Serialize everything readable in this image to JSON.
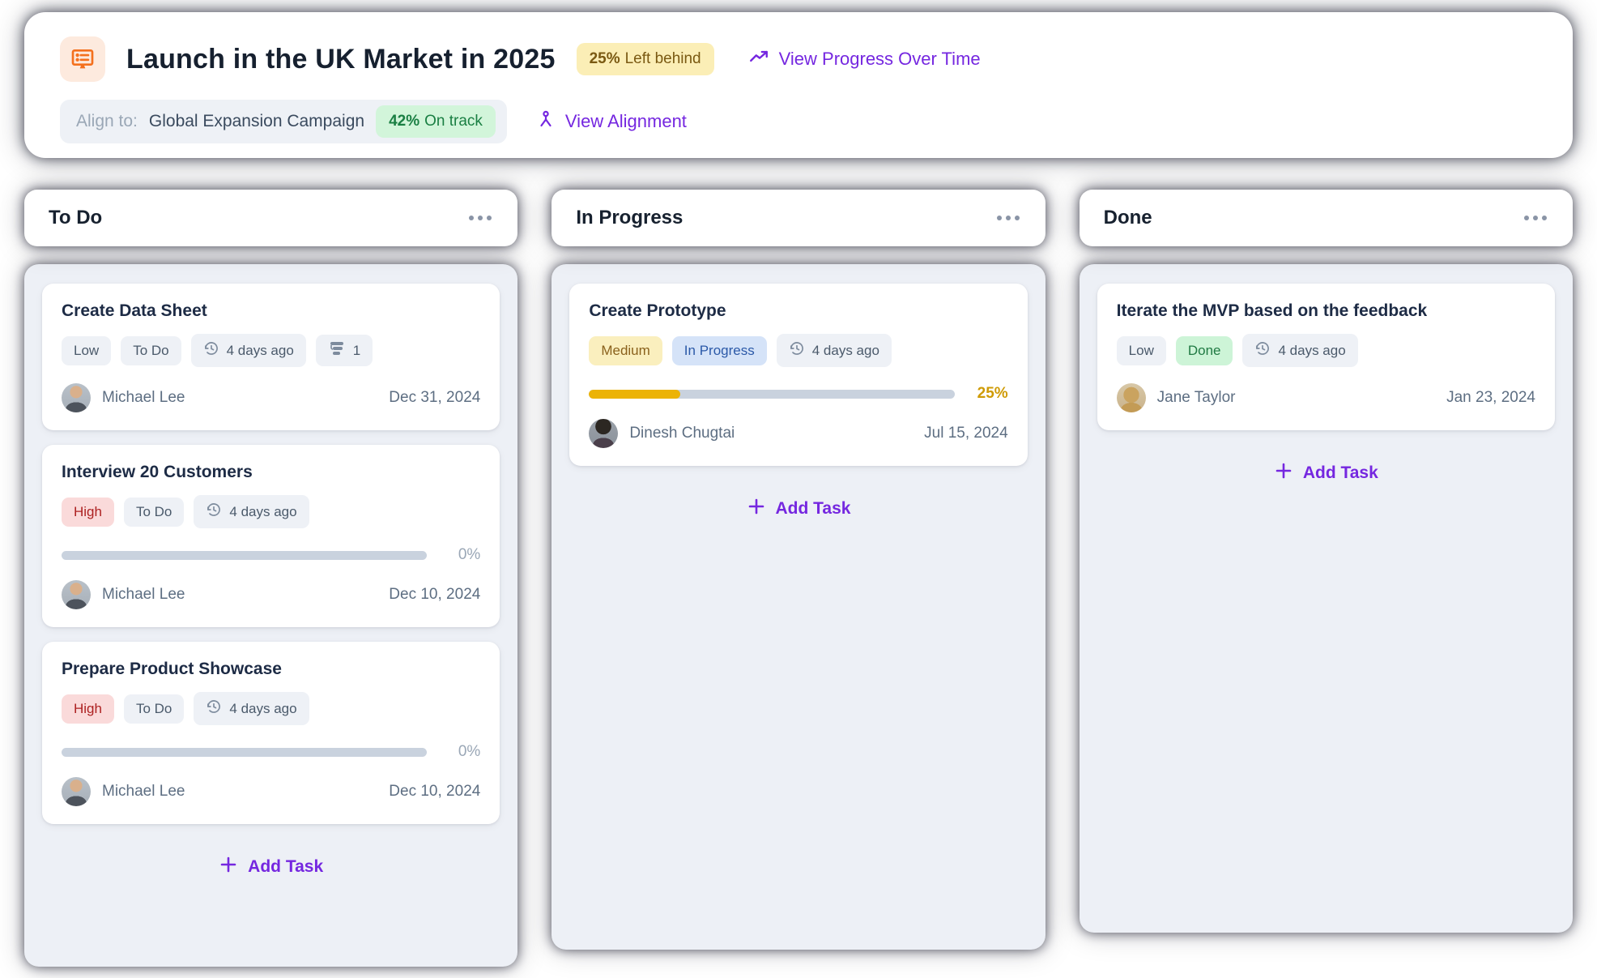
{
  "header": {
    "icon": "board-list-icon",
    "title": "Launch in the UK Market in 2025",
    "progress_badge": {
      "percent": "25%",
      "label": "Left behind"
    },
    "progress_link_label": "View Progress Over Time",
    "align_label": "Align to:",
    "align_target": "Global Expansion Campaign",
    "align_badge": {
      "percent": "42%",
      "label": "On track"
    },
    "alignment_link_label": "View Alignment"
  },
  "columns": [
    {
      "title": "To Do",
      "add_task_label": "Add Task",
      "cards": [
        {
          "title": "Create Data Sheet",
          "priority": "Low",
          "status": "To Do",
          "updated": "4 days ago",
          "subtask_count": "1",
          "assignee": "Michael Lee",
          "avatar": "michael-lee-photo",
          "due_date": "Dec 31, 2024"
        },
        {
          "title": "Interview 20 Customers",
          "priority": "High",
          "status": "To Do",
          "updated": "4 days ago",
          "progress": {
            "value": 0,
            "label": "0%"
          },
          "assignee": "Michael Lee",
          "avatar": "michael-lee-photo",
          "due_date": "Dec 10, 2024"
        },
        {
          "title": "Prepare Product Showcase",
          "priority": "High",
          "status": "To Do",
          "updated": "4 days ago",
          "progress": {
            "value": 0,
            "label": "0%"
          },
          "assignee": "Michael Lee",
          "avatar": "michael-lee-photo",
          "due_date": "Dec 10, 2024"
        }
      ]
    },
    {
      "title": "In Progress",
      "add_task_label": "Add Task",
      "cards": [
        {
          "title": "Create Prototype",
          "priority": "Medium",
          "status": "In Progress",
          "updated": "4 days ago",
          "progress": {
            "value": 25,
            "label": "25%"
          },
          "assignee": "Dinesh Chugtai",
          "avatar": "dinesh-chugtai-photo",
          "due_date": "Jul 15, 2024"
        }
      ]
    },
    {
      "title": "Done",
      "add_task_label": "Add Task",
      "cards": [
        {
          "title": "Iterate the MVP based on the feedback",
          "priority": "Low",
          "status": "Done",
          "updated": "4 days ago",
          "assignee": "Jane Taylor",
          "avatar": "jane-taylor-photo",
          "due_date": "Jan 23, 2024"
        }
      ]
    }
  ],
  "icons": {
    "header_icon": "board-list-icon",
    "progress_link_icon": "trend-up-icon",
    "alignment_link_icon": "hierarchy-person-icon",
    "updated_icon": "history-clock-icon",
    "subtasks_icon": "subtasks-icon",
    "add_icon": "plus-icon",
    "column_menu_icon": "ellipsis-icon"
  },
  "colors": {
    "accent_purple": "#7527e0",
    "progress_yellow": "#ecb306",
    "priority_high_bg": "#fadada",
    "priority_medium_bg": "#faefbe",
    "status_blue_bg": "#d5e3f8",
    "status_green_bg": "#cdf4d7",
    "column_bg": "#edf0f6",
    "track_gray": "#c9d2de"
  }
}
